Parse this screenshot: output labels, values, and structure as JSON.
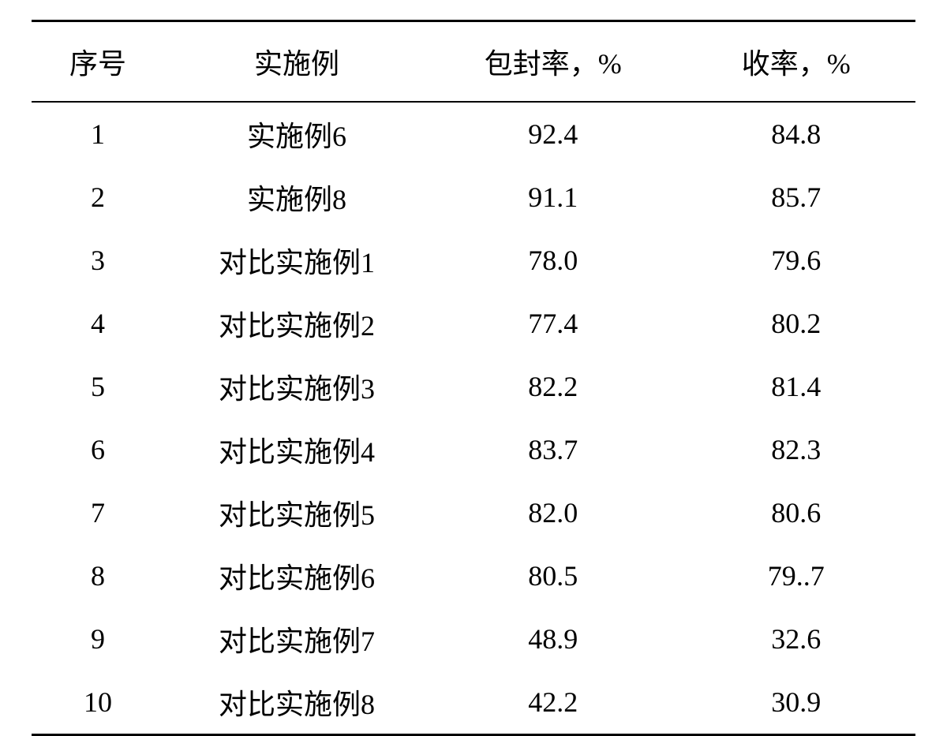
{
  "table": {
    "columns": [
      "序号",
      "实施例",
      "包封率，%",
      "收率，%"
    ],
    "rows": [
      [
        "1",
        "实施例6",
        "92.4",
        "84.8"
      ],
      [
        "2",
        "实施例8",
        "91.1",
        "85.7"
      ],
      [
        "3",
        "对比实施例1",
        "78.0",
        "79.6"
      ],
      [
        "4",
        "对比实施例2",
        "77.4",
        "80.2"
      ],
      [
        "5",
        "对比实施例3",
        "82.2",
        "81.4"
      ],
      [
        "6",
        "对比实施例4",
        "83.7",
        "82.3"
      ],
      [
        "7",
        "对比实施例5",
        "82.0",
        "80.6"
      ],
      [
        "8",
        "对比实施例6",
        "80.5",
        "79..7"
      ],
      [
        "9",
        "对比实施例7",
        "48.9",
        "32.6"
      ],
      [
        "10",
        "对比实施例8",
        "42.2",
        "30.9"
      ]
    ],
    "column_classes": [
      "col-seq",
      "col-name",
      "col-encap",
      "col-yield"
    ],
    "border_color": "#000000",
    "background_color": "#ffffff",
    "text_color": "#000000",
    "header_fontsize": 36,
    "cell_fontsize": 36,
    "top_border_width": 3,
    "header_bottom_border_width": 2,
    "bottom_border_width": 3
  }
}
